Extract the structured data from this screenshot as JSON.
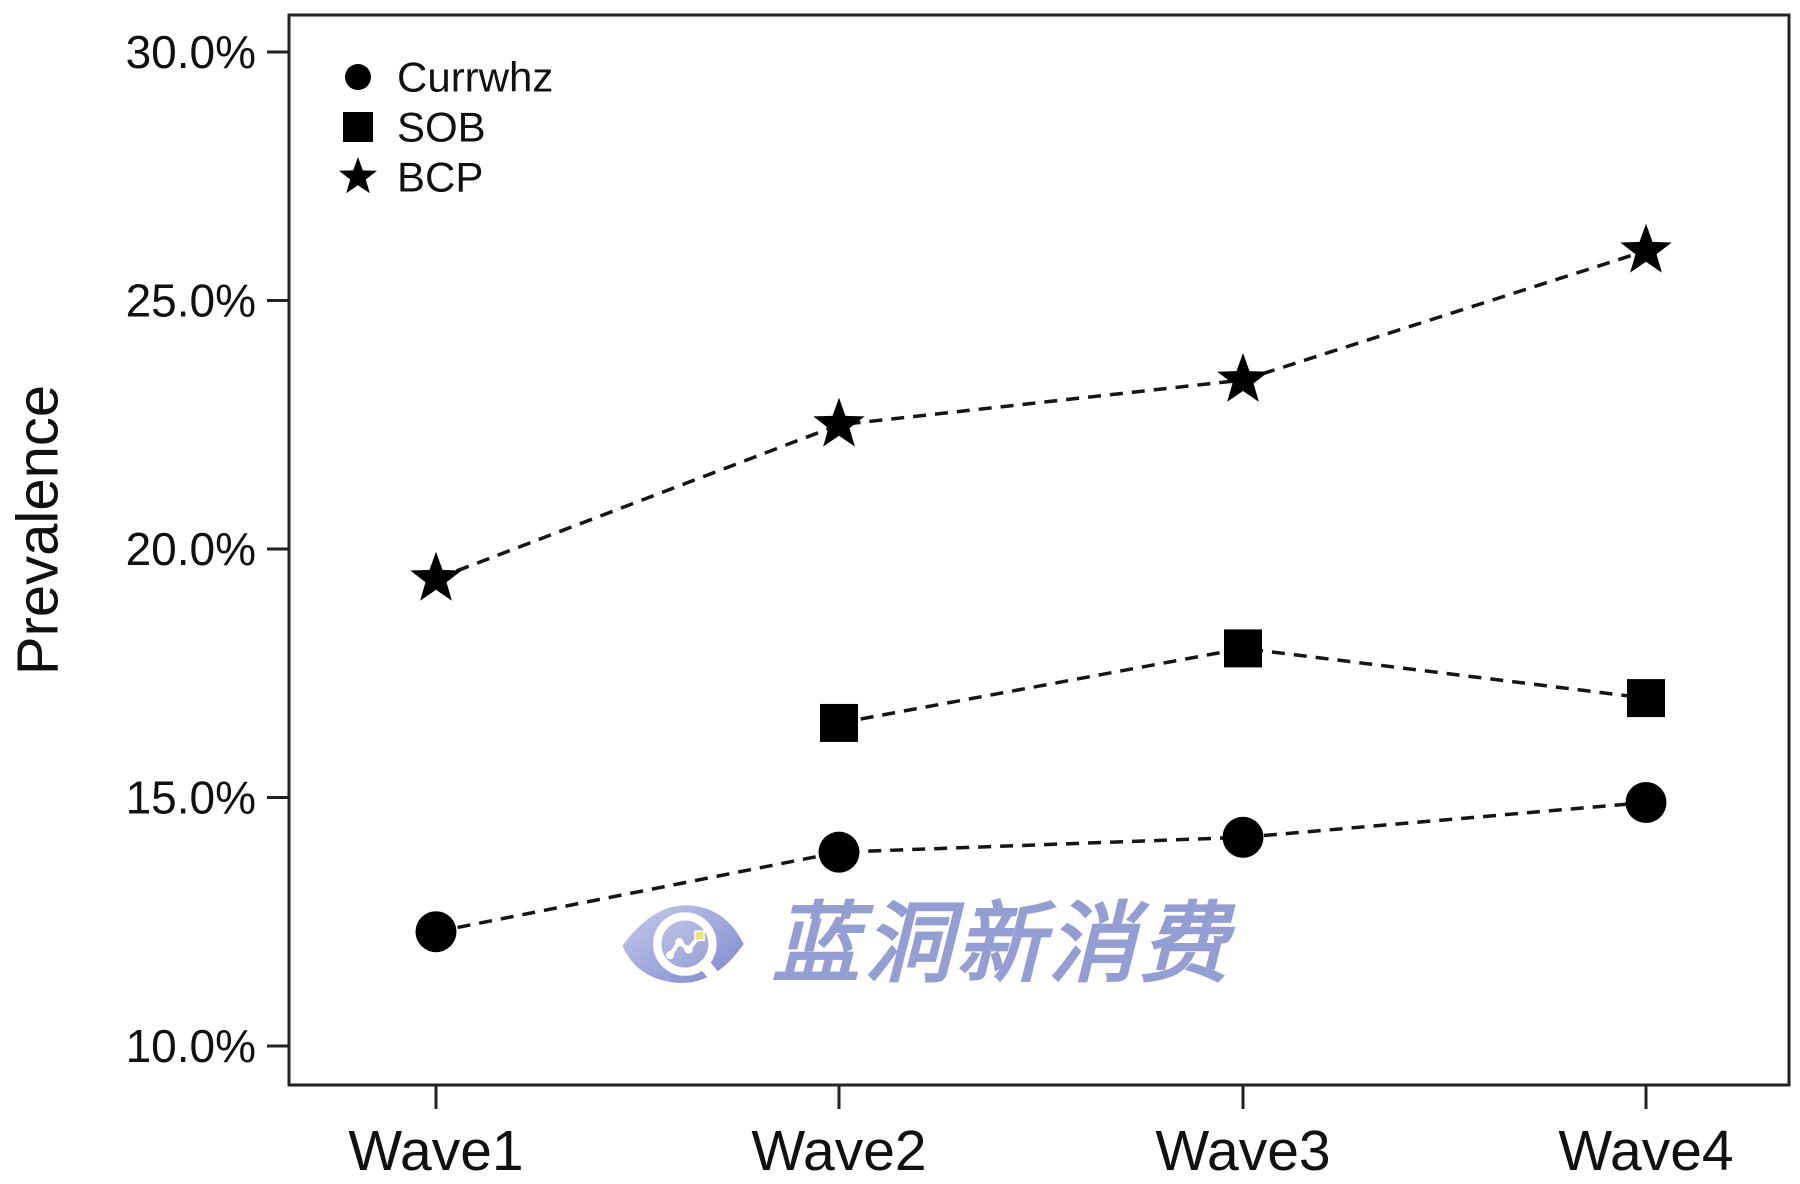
{
  "figure": {
    "background": "#ffffff",
    "axis_color": "#222222",
    "line_color": "#151515",
    "marker_color": "#000000",
    "text_color": "#111111"
  },
  "watermark": {
    "text": "蓝洞新消费",
    "color": "#8d96d0",
    "eye_gradient_start": "#c6cbec",
    "eye_gradient_end": "#7d88cc",
    "lens_ring_color": "#ffffff",
    "accent_dot_color": "#ece77a"
  },
  "chart_data": {
    "type": "line",
    "title": "",
    "xlabel": "",
    "ylabel": "Prevalence",
    "categories": [
      "Wave1",
      "Wave2",
      "Wave3",
      "Wave4"
    ],
    "y_ticks": [
      30.0,
      25.0,
      20.0,
      15.0,
      10.0
    ],
    "y_tick_labels": [
      "30.0%",
      "25.0%",
      "20.0%",
      "15.0%",
      "10.0%"
    ],
    "ylim": [
      9.3,
      30.75
    ],
    "grid": false,
    "line_style": "dashed",
    "legend_position": "top-left",
    "series": [
      {
        "name": "Currwhz",
        "marker": "circle",
        "values": [
          12.3,
          13.9,
          14.2,
          14.9
        ]
      },
      {
        "name": "SOB",
        "marker": "square",
        "values": [
          null,
          16.5,
          18.0,
          17.0
        ]
      },
      {
        "name": "BCP",
        "marker": "star",
        "values": [
          19.4,
          22.5,
          23.4,
          26.0
        ]
      }
    ]
  }
}
